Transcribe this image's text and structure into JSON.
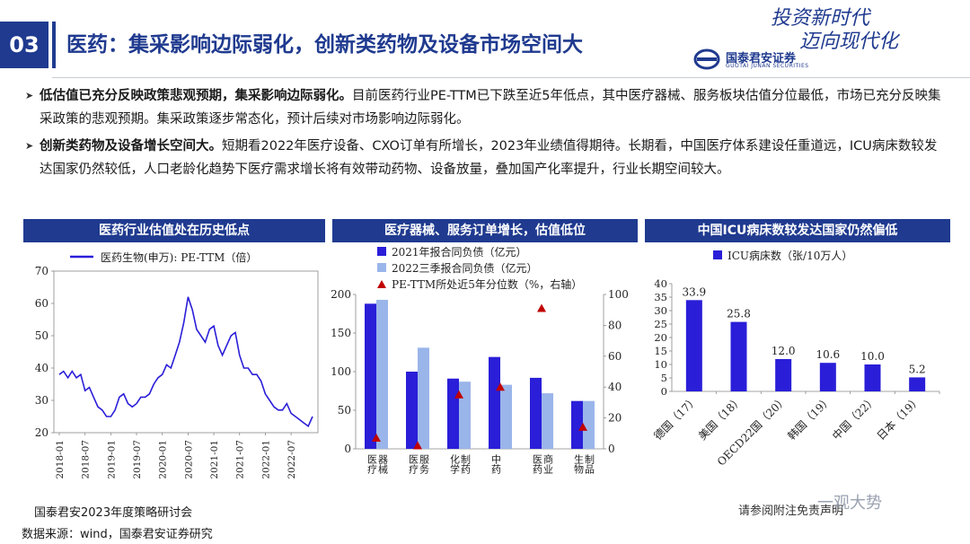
{
  "header": {
    "slide_number": "03",
    "title": "医药：集采影响边际弱化，创新类药物及设备市场空间大",
    "slogan_line1": "投资新时代",
    "slogan_line2": "迈向现代化",
    "logo_text": "国泰君安证券",
    "logo_sub": "GUOTAI JUNAN SECURITIES"
  },
  "bullets": [
    {
      "bold": "低估值已充分反映政策悲观预期，集采影响边际弱化。",
      "text": "目前医药行业PE-TTM已下跌至近5年低点，其中医疗器械、服务板块估值分位最低，市场已充分反映集采政策的悲观预期。集采政策逐步常态化，预计后续对市场影响边际弱化。"
    },
    {
      "bold": "创新类药物及设备增长空间大。",
      "text": "短期看2022年医疗设备、CXO订单有所增长，2023年业绩值得期待。长期看，中国医疗体系建设任重道远，ICU病床数较发达国家仍然较低，人口老龄化趋势下医疗需求增长将有效带动药物、设备放量，叠加国产化率提升，行业长期空间较大。"
    }
  ],
  "panels": [
    "医药行业估值处在历史低点",
    "医疗器械、服务订单增长，估值低位",
    "中国ICU病床数较发达国家仍然偏低"
  ],
  "chart_data": [
    {
      "type": "line",
      "legend": "医药生物(申万): PE-TTM（倍）",
      "ylim": [
        20,
        70
      ],
      "yticks": [
        20,
        30,
        40,
        50,
        60,
        70
      ],
      "xticks": [
        "2018-01",
        "2018-07",
        "2019-01",
        "2019-07",
        "2020-01",
        "2020-07",
        "2021-01",
        "2021-07",
        "2022-01",
        "2022-07"
      ],
      "x": [
        "2018-01",
        "2018-02",
        "2018-03",
        "2018-04",
        "2018-05",
        "2018-06",
        "2018-07",
        "2018-08",
        "2018-09",
        "2018-10",
        "2018-11",
        "2018-12",
        "2019-01",
        "2019-02",
        "2019-03",
        "2019-04",
        "2019-05",
        "2019-06",
        "2019-07",
        "2019-08",
        "2019-09",
        "2019-10",
        "2019-11",
        "2019-12",
        "2020-01",
        "2020-02",
        "2020-03",
        "2020-04",
        "2020-05",
        "2020-06",
        "2020-07",
        "2020-08",
        "2020-09",
        "2020-10",
        "2020-11",
        "2020-12",
        "2021-01",
        "2021-02",
        "2021-03",
        "2021-04",
        "2021-05",
        "2021-06",
        "2021-07",
        "2021-08",
        "2021-09",
        "2021-10",
        "2021-11",
        "2021-12",
        "2022-01",
        "2022-02",
        "2022-03",
        "2022-04",
        "2022-05",
        "2022-06",
        "2022-07",
        "2022-08",
        "2022-09",
        "2022-10",
        "2022-11",
        "2022-12"
      ],
      "values": [
        38,
        39,
        37,
        39,
        37,
        38,
        33,
        34,
        31,
        28,
        27,
        25,
        25,
        27,
        31,
        32,
        29,
        28,
        29,
        31,
        31,
        32,
        35,
        37,
        38,
        41,
        40,
        44,
        48,
        54,
        62,
        58,
        52,
        50,
        48,
        52,
        53,
        47,
        44,
        47,
        50,
        51,
        44,
        40,
        40,
        38,
        38,
        36,
        32,
        30,
        28,
        27,
        27,
        29,
        26,
        25,
        24,
        23,
        22,
        25
      ],
      "color": "#2a1ed8"
    },
    {
      "type": "bar",
      "categories": [
        "医疗器械",
        "医疗服务",
        "化学制药",
        "中药",
        "医药商业",
        "生物制品"
      ],
      "series": [
        {
          "name": "2021年报合同负债（亿元）",
          "values": [
            188,
            100,
            91,
            119,
            92,
            62
          ],
          "color": "#2a1ed8"
        },
        {
          "name": "2022三季报合同负债（亿元）",
          "values": [
            193,
            131,
            87,
            83,
            72,
            62
          ],
          "color": "#9ab5ea"
        },
        {
          "name": "PE-TTM所处近5年分位数（%，右轴）",
          "type": "scatter",
          "axis": "right",
          "values": [
            7,
            2,
            35,
            40,
            91,
            14
          ],
          "color": "#c00000"
        }
      ],
      "ylim": [
        0,
        200
      ],
      "yticks": [
        0,
        50,
        100,
        150,
        200
      ],
      "y2lim": [
        0,
        100
      ],
      "y2ticks": [
        0,
        20,
        40,
        60,
        80,
        100
      ]
    },
    {
      "type": "bar",
      "categories": [
        "德国（17）",
        "美国（18）",
        "OECD22国（20）",
        "韩国（19）",
        "中国（22）",
        "日本（19）"
      ],
      "series": [
        {
          "name": "ICU病床数（张/10万人）",
          "values": [
            33.9,
            25.8,
            12.0,
            10.6,
            10.0,
            5.2
          ],
          "labels": [
            "33.9",
            "25.8",
            "12.0",
            "10.6",
            "10.0",
            "5.2"
          ],
          "color": "#2a1ed8"
        }
      ],
      "ylim": [
        0,
        40
      ],
      "yticks": [
        0,
        5,
        10,
        15,
        20,
        25,
        30,
        35,
        40
      ]
    }
  ],
  "footer": {
    "event": "国泰君安2023年度策略研讨会",
    "source": "数据来源：wind，国泰君安证券研究",
    "disclaimer": "请参阅附注免责声明",
    "watermark": "一观大势"
  }
}
